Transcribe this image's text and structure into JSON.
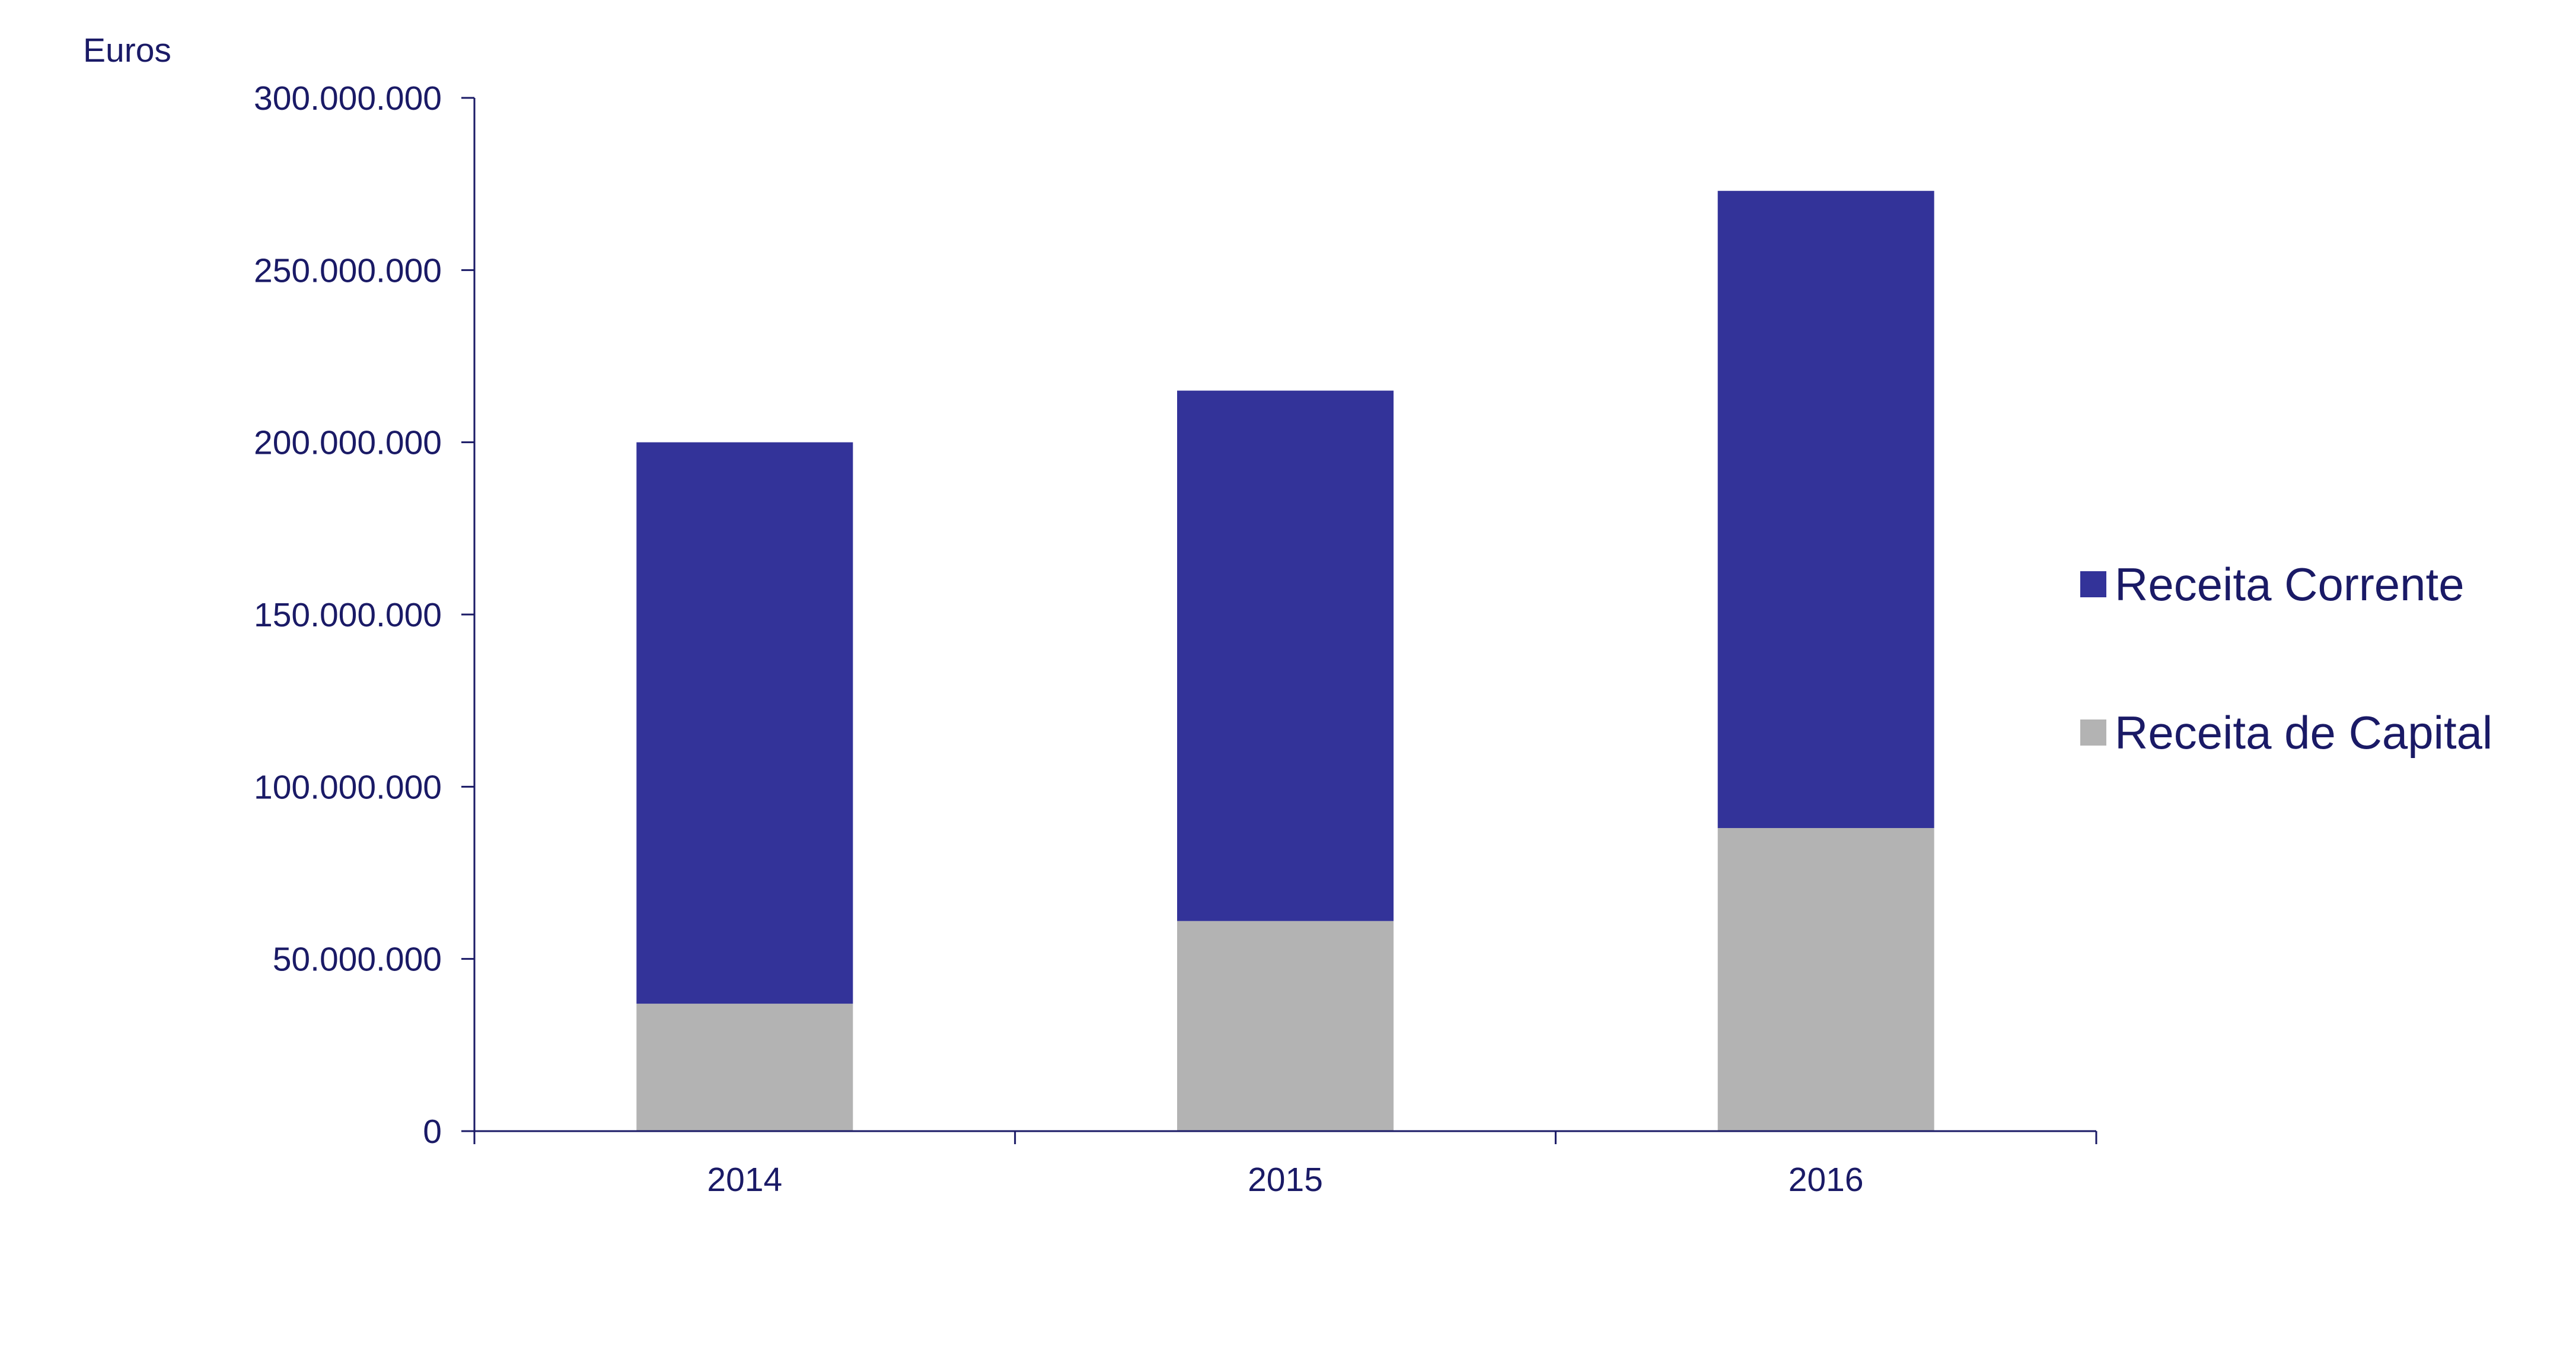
{
  "chart_data": {
    "type": "bar",
    "stacked": true,
    "title": "",
    "xlabel": "",
    "ylabel": "Euros",
    "categories": [
      "2014",
      "2015",
      "2016"
    ],
    "series": [
      {
        "name": "Receita de Capital",
        "color": "#b3b3b3",
        "values": [
          37000000,
          61000000,
          88000000
        ]
      },
      {
        "name": "Receita Corrente",
        "color": "#333399",
        "values": [
          163000000,
          154000000,
          185000000
        ]
      }
    ],
    "ylim": [
      0,
      300000000
    ],
    "yticks": [
      0,
      50000000,
      100000000,
      150000000,
      200000000,
      250000000,
      300000000
    ],
    "ytick_labels": [
      "0",
      "50.000.000",
      "100.000.000",
      "150.000.000",
      "200.000.000",
      "250.000.000",
      "300.000.000"
    ],
    "grid": false,
    "legend": {
      "position": "right",
      "entries": [
        {
          "label": "Receita Corrente",
          "color": "#333399"
        },
        {
          "label": "Receita de Capital",
          "color": "#b3b3b3"
        }
      ]
    },
    "axis_color": "#1a1a66"
  }
}
